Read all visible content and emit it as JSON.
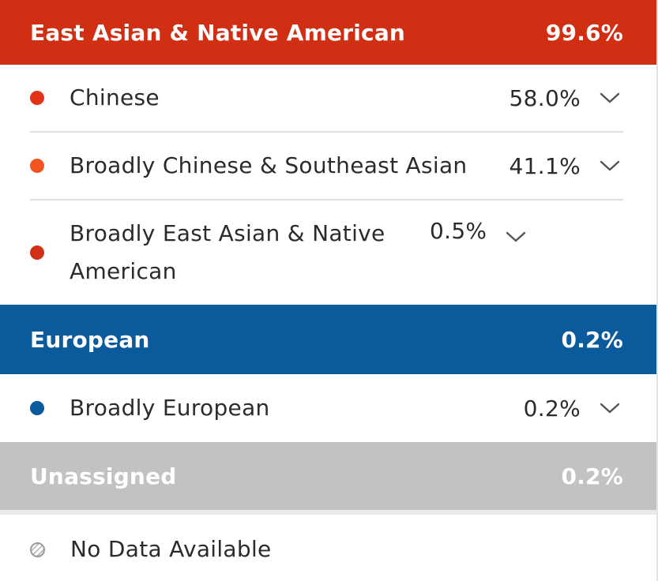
{
  "colors": {
    "east_asian_header": "#d12f14",
    "european_header": "#0b5a9c",
    "unassigned_header": "#c1c2c4",
    "chinese_dot": "#e0341a",
    "broad_cse_dot": "#f05522",
    "broad_ea_dot": "#d12f14",
    "european_dot": "#0b5a9c"
  },
  "groups": {
    "east_asian": {
      "title": "East Asian & Native American",
      "percent": "99.6%",
      "items": [
        {
          "label": "Chinese",
          "percent": "58.0%",
          "icon": "chevron-down-icon"
        },
        {
          "label": "Broadly Chinese & Southeast Asian",
          "percent": "41.1%",
          "icon": "chevron-down-icon"
        },
        {
          "label": "Broadly East Asian & Native American",
          "percent": "0.5%",
          "icon": "chevron-down-icon"
        }
      ]
    },
    "european": {
      "title": "European",
      "percent": "0.2%",
      "items": [
        {
          "label": "Broadly European",
          "percent": "0.2%",
          "icon": "chevron-down-icon"
        }
      ]
    },
    "unassigned": {
      "title": "Unassigned",
      "percent": "0.2%"
    }
  },
  "no_data": {
    "label": "No Data Available",
    "icon": "hatched-circle-icon"
  }
}
